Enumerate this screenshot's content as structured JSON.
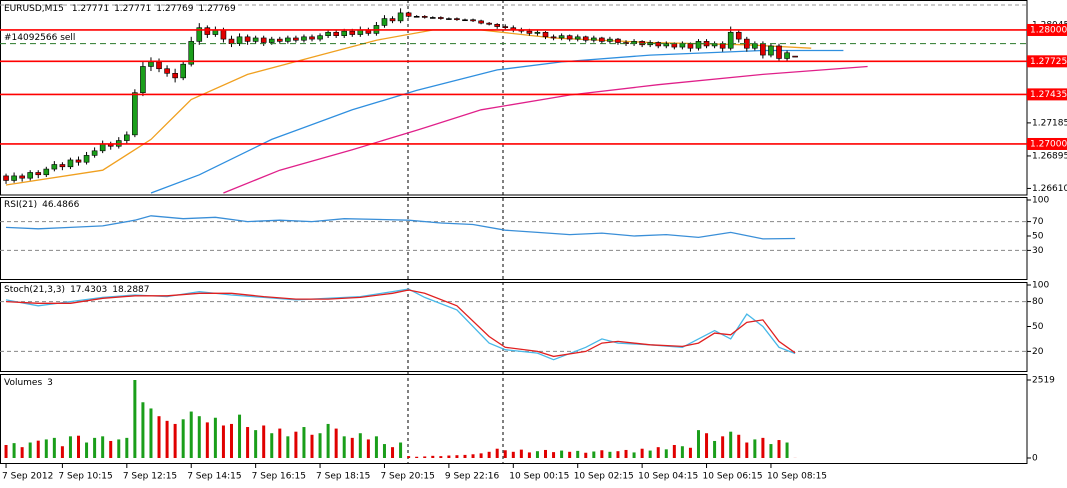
{
  "chart_data": [
    {
      "type": "candlestick",
      "title": "EURUSD,M15",
      "up_color": "#1a9e1a",
      "down_color": "#e00000",
      "xlim": [
        -0.75,
        126.8
      ],
      "xticks": [
        {
          "value": 0,
          "label": "7 Sep 2012"
        },
        {
          "value": 7,
          "label": "7 Sep 10:15"
        },
        {
          "value": 15,
          "label": "7 Sep 12:15"
        },
        {
          "value": 23,
          "label": "7 Sep 14:15"
        },
        {
          "value": 31,
          "label": "7 Sep 16:15"
        },
        {
          "value": 39,
          "label": "7 Sep 18:15"
        },
        {
          "value": 47,
          "label": "7 Sep 20:15"
        },
        {
          "value": 55,
          "label": "9 Sep 22:16"
        },
        {
          "value": 63,
          "label": "10 Sep 00:15"
        },
        {
          "value": 71,
          "label": "10 Sep 02:15"
        },
        {
          "value": 79,
          "label": "10 Sep 04:15"
        },
        {
          "value": 87,
          "label": "10 Sep 06:15"
        },
        {
          "value": 95,
          "label": "10 Sep 08:15"
        }
      ],
      "ylim": [
        1.2657,
        1.28263
      ],
      "yticks": [
        1.28045,
        1.27185,
        1.26895,
        {
          "value": 1.2661,
          "label": "1.26610"
        }
      ],
      "levels": [
        {
          "value": 1.28,
          "label": "1.28000"
        },
        1.27725,
        1.27435,
        {
          "value": 1.27,
          "label": "1.27000"
        }
      ],
      "level_color": "#ff0000",
      "order": {
        "label": "#14092566 sell",
        "value": 1.2788
      },
      "ohlc": [
        [
          1.2672,
          1.2674,
          1.2665,
          1.2668
        ],
        [
          1.2668,
          1.2675,
          1.2666,
          1.2672
        ],
        [
          1.2672,
          1.2674,
          1.2667,
          1.267
        ],
        [
          1.267,
          1.2677,
          1.2668,
          1.2675
        ],
        [
          1.2675,
          1.2677,
          1.267,
          1.2673
        ],
        [
          1.2673,
          1.268,
          1.2671,
          1.2678
        ],
        [
          1.2678,
          1.2685,
          1.2676,
          1.2682
        ],
        [
          1.2682,
          1.2684,
          1.2677,
          1.268
        ],
        [
          1.268,
          1.2688,
          1.2678,
          1.2686
        ],
        [
          1.2686,
          1.2689,
          1.2681,
          1.2684
        ],
        [
          1.2684,
          1.2693,
          1.2682,
          1.269
        ],
        [
          1.269,
          1.2697,
          1.2688,
          1.2694
        ],
        [
          1.2694,
          1.2703,
          1.2692,
          1.27
        ],
        [
          1.27,
          1.2702,
          1.2695,
          1.2698
        ],
        [
          1.2698,
          1.2706,
          1.2696,
          1.2703
        ],
        [
          1.2703,
          1.2711,
          1.27,
          1.2708
        ],
        [
          1.2708,
          1.2748,
          1.2706,
          1.2745
        ],
        [
          1.2745,
          1.2772,
          1.2742,
          1.2768
        ],
        [
          1.2768,
          1.2776,
          1.2764,
          1.2772
        ],
        [
          1.2772,
          1.2775,
          1.2763,
          1.2766
        ],
        [
          1.2766,
          1.2769,
          1.2759,
          1.2762
        ],
        [
          1.2762,
          1.2766,
          1.2754,
          1.2758
        ],
        [
          1.2758,
          1.2773,
          1.2756,
          1.277
        ],
        [
          1.277,
          1.2794,
          1.2768,
          1.279
        ],
        [
          1.279,
          1.2806,
          1.2787,
          1.2802
        ],
        [
          1.2802,
          1.2804,
          1.2793,
          1.2796
        ],
        [
          1.2796,
          1.2803,
          1.2794,
          1.28
        ],
        [
          1.28,
          1.2802,
          1.2789,
          1.2792
        ],
        [
          1.2792,
          1.2795,
          1.2785,
          1.2788
        ],
        [
          1.2788,
          1.2797,
          1.2786,
          1.2794
        ],
        [
          1.2794,
          1.2796,
          1.2787,
          1.279
        ],
        [
          1.279,
          1.2795,
          1.2788,
          1.2793
        ],
        [
          1.2793,
          1.2795,
          1.2786,
          1.2789
        ],
        [
          1.2789,
          1.2794,
          1.2787,
          1.2792
        ],
        [
          1.2792,
          1.2794,
          1.2788,
          1.279
        ],
        [
          1.279,
          1.2795,
          1.2788,
          1.2793
        ],
        [
          1.2793,
          1.2795,
          1.2789,
          1.2791
        ],
        [
          1.2791,
          1.2796,
          1.2789,
          1.2794
        ],
        [
          1.2794,
          1.2796,
          1.279,
          1.2792
        ],
        [
          1.2792,
          1.2797,
          1.279,
          1.2795
        ],
        [
          1.2795,
          1.28,
          1.2793,
          1.2798
        ],
        [
          1.2798,
          1.28,
          1.2793,
          1.2795
        ],
        [
          1.2795,
          1.2801,
          1.2793,
          1.2799
        ],
        [
          1.2799,
          1.2801,
          1.2794,
          1.2796
        ],
        [
          1.2796,
          1.2803,
          1.2794,
          1.28
        ],
        [
          1.28,
          1.2802,
          1.2795,
          1.2797
        ],
        [
          1.2797,
          1.2807,
          1.2795,
          1.2804
        ],
        [
          1.2804,
          1.2813,
          1.2802,
          1.281
        ],
        [
          1.281,
          1.2812,
          1.2806,
          1.2808
        ],
        [
          1.2808,
          1.2819,
          1.2806,
          1.2815
        ],
        [
          1.2815,
          1.2816,
          1.2811,
          1.2812
        ],
        [
          1.2812,
          1.2813,
          1.2811,
          1.2812
        ],
        [
          1.2812,
          1.2813,
          1.281,
          1.2811
        ],
        [
          1.2811,
          1.2812,
          1.281,
          1.2811
        ],
        [
          1.2811,
          1.2812,
          1.2809,
          1.281
        ],
        [
          1.281,
          1.2811,
          1.2809,
          1.281
        ],
        [
          1.281,
          1.2811,
          1.2808,
          1.2809
        ],
        [
          1.2809,
          1.281,
          1.2808,
          1.2809
        ],
        [
          1.2809,
          1.281,
          1.2807,
          1.2808
        ],
        [
          1.2808,
          1.2809,
          1.2805,
          1.2806
        ],
        [
          1.2806,
          1.2807,
          1.2804,
          1.2805
        ],
        [
          1.2805,
          1.2806,
          1.2801,
          1.2803
        ],
        [
          1.2803,
          1.2805,
          1.28,
          1.2802
        ],
        [
          1.2802,
          1.2804,
          1.2798,
          1.28
        ],
        [
          1.28,
          1.2802,
          1.2797,
          1.2799
        ],
        [
          1.2799,
          1.2801,
          1.2795,
          1.2797
        ],
        [
          1.2797,
          1.28,
          1.2795,
          1.2798
        ],
        [
          1.2798,
          1.2799,
          1.2792,
          1.2794
        ],
        [
          1.2794,
          1.2796,
          1.2791,
          1.2793
        ],
        [
          1.2793,
          1.2797,
          1.2791,
          1.2795
        ],
        [
          1.2795,
          1.2796,
          1.279,
          1.2792
        ],
        [
          1.2792,
          1.2796,
          1.279,
          1.2794
        ],
        [
          1.2794,
          1.2795,
          1.2789,
          1.2791
        ],
        [
          1.2791,
          1.2795,
          1.2789,
          1.2793
        ],
        [
          1.2793,
          1.2794,
          1.2788,
          1.279
        ],
        [
          1.279,
          1.2794,
          1.2788,
          1.2792
        ],
        [
          1.2792,
          1.2793,
          1.2787,
          1.2789
        ],
        [
          1.2789,
          1.2791,
          1.2786,
          1.2788
        ],
        [
          1.2788,
          1.2792,
          1.2786,
          1.279
        ],
        [
          1.279,
          1.2791,
          1.2785,
          1.2787
        ],
        [
          1.2787,
          1.2791,
          1.2785,
          1.2789
        ],
        [
          1.2789,
          1.279,
          1.2784,
          1.2786
        ],
        [
          1.2786,
          1.279,
          1.2784,
          1.2788
        ],
        [
          1.2788,
          1.2789,
          1.2783,
          1.2785
        ],
        [
          1.2785,
          1.279,
          1.2783,
          1.2788
        ],
        [
          1.2788,
          1.2789,
          1.2781,
          1.2784
        ],
        [
          1.2784,
          1.2792,
          1.2782,
          1.279
        ],
        [
          1.279,
          1.2792,
          1.2784,
          1.2786
        ],
        [
          1.2786,
          1.279,
          1.2784,
          1.2788
        ],
        [
          1.2788,
          1.279,
          1.2781,
          1.2784
        ],
        [
          1.2784,
          1.2803,
          1.2782,
          1.2798
        ],
        [
          1.2798,
          1.28,
          1.2789,
          1.2792
        ],
        [
          1.2792,
          1.2794,
          1.2781,
          1.2784
        ],
        [
          1.2784,
          1.279,
          1.2782,
          1.2788
        ],
        [
          1.2788,
          1.279,
          1.2775,
          1.2778
        ],
        [
          1.2778,
          1.2788,
          1.2776,
          1.2786
        ],
        [
          1.2786,
          1.2788,
          1.2772,
          1.2775
        ],
        [
          1.2775,
          1.2782,
          1.2773,
          1.278
        ],
        [
          1.27771,
          1.27771,
          1.27769,
          1.27769
        ]
      ],
      "moving_averages": [
        {
          "color": "#f0a020",
          "x": [
            0,
            12,
            18,
            23,
            30,
            39,
            46,
            53,
            59,
            68,
            80,
            92,
            100
          ],
          "values": [
            1.2664,
            1.2677,
            1.2704,
            1.2739,
            1.2761,
            1.2778,
            1.2791,
            1.28,
            1.28,
            1.2793,
            1.2789,
            1.2787,
            1.2784
          ]
        },
        {
          "color": "#2f8fdf",
          "x": [
            18,
            24,
            33,
            43,
            51,
            61,
            69,
            80,
            94,
            104
          ],
          "values": [
            1.2657,
            1.2673,
            1.2704,
            1.273,
            1.2747,
            1.2765,
            1.2772,
            1.2778,
            1.2782,
            1.2782
          ]
        },
        {
          "color": "#e0208a",
          "x": [
            27,
            34,
            43,
            51,
            59,
            70,
            81,
            94,
            107
          ],
          "values": [
            1.2657,
            1.2677,
            1.2695,
            1.2712,
            1.273,
            1.2743,
            1.2752,
            1.2761,
            1.2768
          ]
        }
      ]
    },
    {
      "type": "line",
      "title": "RSI(21)",
      "ylim": [
        0,
        100
      ],
      "yticks": [
        100,
        70,
        50,
        30
      ],
      "levels": [
        70,
        30
      ],
      "series": [
        {
          "color": "#3a8fd8",
          "x": [
            0,
            4,
            8,
            12,
            16,
            18,
            22,
            26,
            30,
            34,
            38,
            42,
            46,
            50,
            54,
            58,
            62,
            66,
            70,
            74,
            78,
            82,
            86,
            90,
            94,
            98
          ],
          "values": [
            62,
            60,
            62,
            64,
            72,
            78,
            74,
            76,
            70,
            72,
            70,
            74,
            73,
            72,
            68,
            66,
            58,
            55,
            52,
            54,
            50,
            52,
            48,
            55,
            46,
            46.4866
          ]
        }
      ]
    },
    {
      "type": "line",
      "title": "Stoch(21,3,3)",
      "ylim": [
        0,
        100
      ],
      "yticks": [
        100,
        80,
        50,
        20
      ],
      "levels": [
        80,
        20
      ],
      "series": [
        {
          "color": "#48b8e8",
          "x": [
            0,
            4,
            8,
            12,
            16,
            20,
            24,
            28,
            32,
            36,
            40,
            44,
            48,
            50,
            52,
            56,
            60,
            62,
            66,
            68,
            72,
            74,
            76,
            80,
            84,
            86,
            88,
            90,
            92,
            94,
            96,
            98
          ],
          "values": [
            82,
            75,
            80,
            85,
            88,
            86,
            92,
            88,
            85,
            82,
            84,
            86,
            92,
            95,
            85,
            70,
            30,
            22,
            18,
            10,
            25,
            35,
            30,
            28,
            25,
            35,
            45,
            35,
            65,
            50,
            25,
            17.4303
          ]
        },
        {
          "color": "#e02020",
          "x": [
            0,
            4,
            8,
            12,
            16,
            20,
            24,
            28,
            32,
            36,
            40,
            44,
            48,
            50,
            52,
            56,
            60,
            62,
            66,
            68,
            72,
            74,
            76,
            80,
            84,
            86,
            88,
            90,
            92,
            94,
            96,
            98
          ],
          "values": [
            80,
            78,
            78,
            84,
            87,
            87,
            90,
            90,
            86,
            83,
            83,
            85,
            90,
            94,
            90,
            75,
            38,
            25,
            20,
            14,
            20,
            30,
            32,
            28,
            26,
            30,
            42,
            40,
            55,
            58,
            32,
            18.2887
          ]
        }
      ]
    },
    {
      "type": "bar",
      "title": "Volumes",
      "ylim": [
        0,
        2519
      ],
      "yticks": [
        0,
        2519
      ],
      "values": [
        420,
        480,
        350,
        500,
        560,
        600,
        650,
        380,
        700,
        720,
        500,
        650,
        700,
        550,
        600,
        650,
        2519,
        1800,
        1600,
        1350,
        1200,
        1100,
        1250,
        1500,
        1350,
        1150,
        1300,
        1050,
        1100,
        1400,
        1000,
        900,
        1050,
        800,
        950,
        700,
        850,
        1000,
        750,
        800,
        1100,
        950,
        700,
        650,
        800,
        600,
        700,
        450,
        350,
        500,
        60,
        40,
        50,
        70,
        60,
        80,
        90,
        100,
        120,
        150,
        200,
        300,
        250,
        200,
        270,
        180,
        220,
        260,
        190,
        240,
        200,
        230,
        170,
        210,
        250,
        200,
        220,
        260,
        180,
        300,
        240,
        350,
        280,
        420,
        380,
        330,
        900,
        800,
        550,
        700,
        850,
        750,
        500,
        600,
        650,
        450,
        580,
        500,
        3
      ]
    }
  ]
}
